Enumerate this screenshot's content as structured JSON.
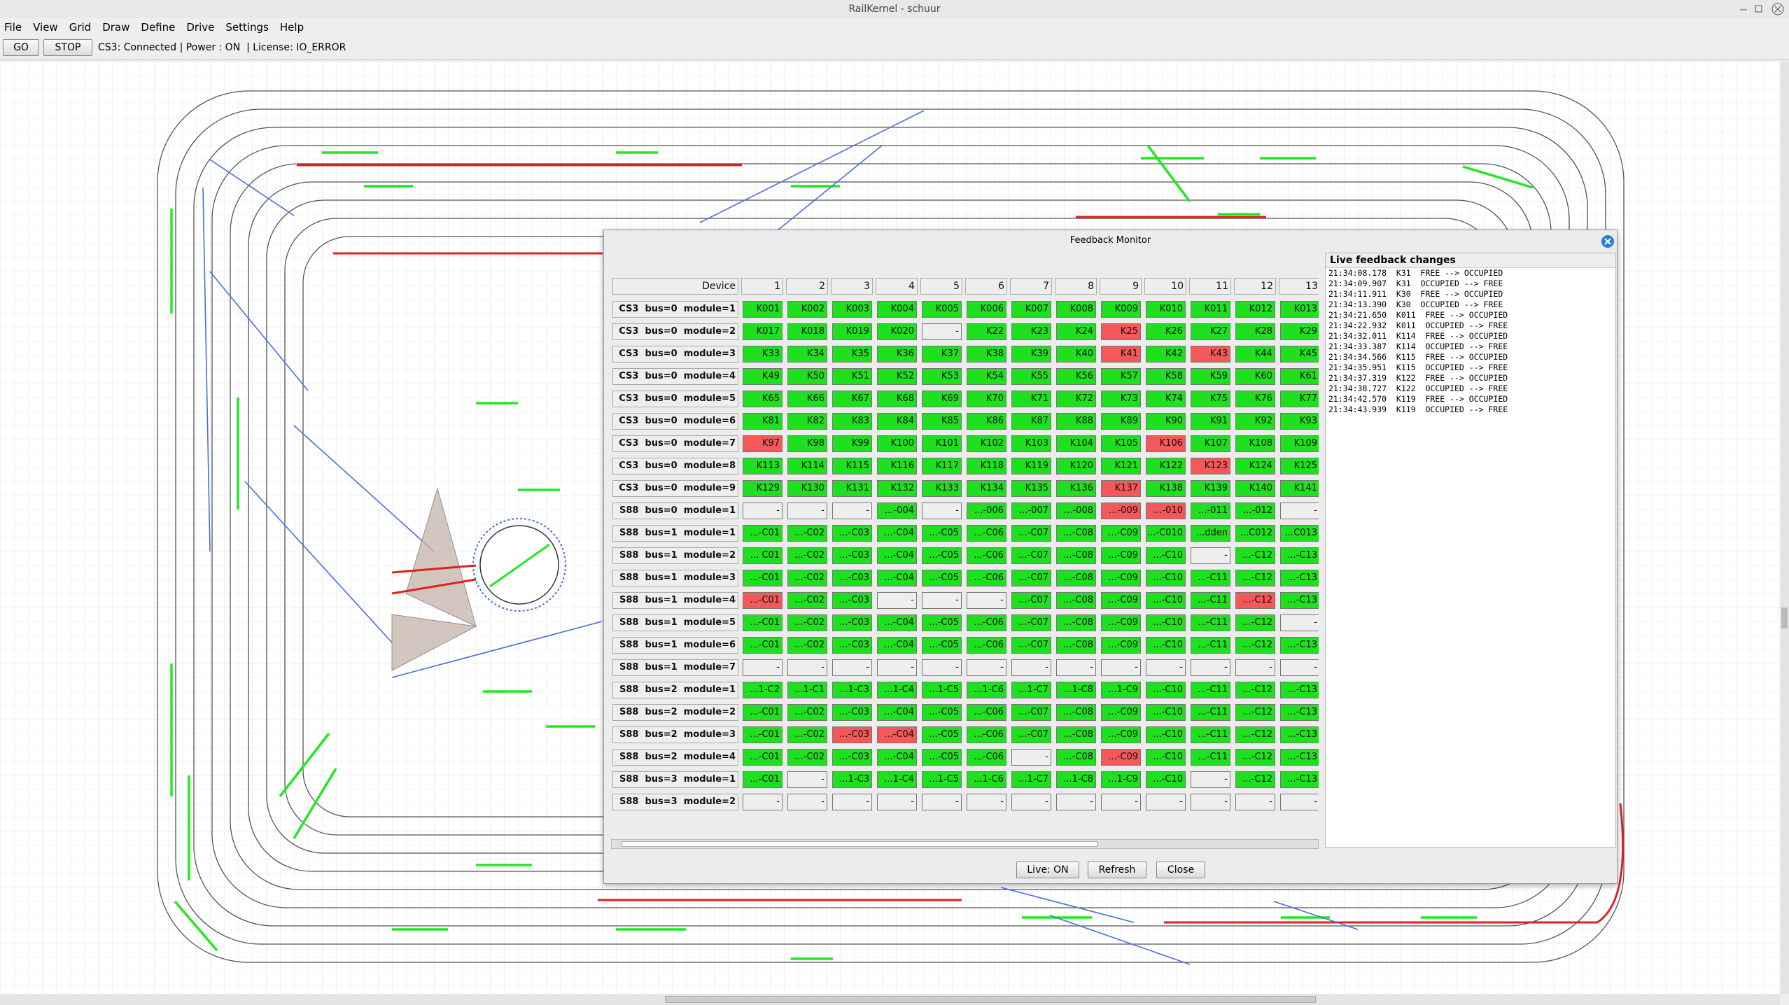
{
  "window": {
    "title": "RailKernel - schuur"
  },
  "menu": [
    "File",
    "View",
    "Grid",
    "Draw",
    "Define",
    "Drive",
    "Settings",
    "Help"
  ],
  "toolbar": {
    "buttons": [
      "GO",
      "STOP"
    ],
    "status": "CS3: Connected | Power : ON  | License: IO_ERROR"
  },
  "dialog": {
    "title": "Feedback Monitor",
    "columns": [
      "Device",
      "1",
      "2",
      "3",
      "4",
      "5",
      "6",
      "7",
      "8",
      "9",
      "10",
      "11",
      "12",
      "13"
    ],
    "rows": [
      {
        "device": "CS3  bus=0  module=1",
        "cells": [
          "K001",
          "K002",
          "K003",
          "K004",
          "K005",
          "K006",
          "K007",
          "K008",
          "K009",
          "K010",
          "K011",
          "K012",
          "K013"
        ],
        "colors": [
          "#1fe01f",
          "#1fe01f",
          "#1fe01f",
          "#1fe01f",
          "#1fe01f",
          "#1fe01f",
          "#1fe01f",
          "#1fe01f",
          "#1fe01f",
          "#1fe01f",
          "#1fe01f",
          "#1fe01f",
          "#1fe01f"
        ]
      },
      {
        "device": "CS3  bus=0  module=2",
        "cells": [
          "K017",
          "K018",
          "K019",
          "K020",
          "-",
          "K22",
          "K23",
          "K24",
          "K25",
          "K26",
          "K27",
          "K28",
          "K29"
        ],
        "colors": [
          "#1fe01f",
          "#1fe01f",
          "#1fe01f",
          "#1fe01f",
          "#eeeeee",
          "#1fe01f",
          "#1fe01f",
          "#1fe01f",
          "#f55858",
          "#1fe01f",
          "#1fe01f",
          "#1fe01f",
          "#1fe01f"
        ]
      },
      {
        "device": "CS3  bus=0  module=3",
        "cells": [
          "K33",
          "K34",
          "K35",
          "K36",
          "K37",
          "K38",
          "K39",
          "K40",
          "K41",
          "K42",
          "K43",
          "K44",
          "K45"
        ],
        "colors": [
          "#1fe01f",
          "#1fe01f",
          "#1fe01f",
          "#1fe01f",
          "#1fe01f",
          "#1fe01f",
          "#1fe01f",
          "#1fe01f",
          "#f55858",
          "#1fe01f",
          "#f55858",
          "#1fe01f",
          "#1fe01f"
        ]
      },
      {
        "device": "CS3  bus=0  module=4",
        "cells": [
          "K49",
          "K50",
          "K51",
          "K52",
          "K53",
          "K54",
          "K55",
          "K56",
          "K57",
          "K58",
          "K59",
          "K60",
          "K61"
        ],
        "colors": [
          "#1fe01f",
          "#1fe01f",
          "#1fe01f",
          "#1fe01f",
          "#1fe01f",
          "#1fe01f",
          "#1fe01f",
          "#1fe01f",
          "#1fe01f",
          "#1fe01f",
          "#1fe01f",
          "#1fe01f",
          "#1fe01f"
        ]
      },
      {
        "device": "CS3  bus=0  module=5",
        "cells": [
          "K65",
          "K66",
          "K67",
          "K68",
          "K69",
          "K70",
          "K71",
          "K72",
          "K73",
          "K74",
          "K75",
          "K76",
          "K77"
        ],
        "colors": [
          "#1fe01f",
          "#1fe01f",
          "#1fe01f",
          "#1fe01f",
          "#1fe01f",
          "#1fe01f",
          "#1fe01f",
          "#1fe01f",
          "#1fe01f",
          "#1fe01f",
          "#1fe01f",
          "#1fe01f",
          "#1fe01f"
        ]
      },
      {
        "device": "CS3  bus=0  module=6",
        "cells": [
          "K81",
          "K82",
          "K83",
          "K84",
          "K85",
          "K86",
          "K87",
          "K88",
          "K89",
          "K90",
          "K91",
          "K92",
          "K93"
        ],
        "colors": [
          "#1fe01f",
          "#1fe01f",
          "#1fe01f",
          "#1fe01f",
          "#1fe01f",
          "#1fe01f",
          "#1fe01f",
          "#1fe01f",
          "#1fe01f",
          "#1fe01f",
          "#1fe01f",
          "#1fe01f",
          "#1fe01f"
        ]
      },
      {
        "device": "CS3  bus=0  module=7",
        "cells": [
          "K97",
          "K98",
          "K99",
          "K100",
          "K101",
          "K102",
          "K103",
          "K104",
          "K105",
          "K106",
          "K107",
          "K108",
          "K109"
        ],
        "colors": [
          "#f55858",
          "#1fe01f",
          "#1fe01f",
          "#1fe01f",
          "#1fe01f",
          "#1fe01f",
          "#1fe01f",
          "#1fe01f",
          "#1fe01f",
          "#f55858",
          "#1fe01f",
          "#1fe01f",
          "#1fe01f"
        ]
      },
      {
        "device": "CS3  bus=0  module=8",
        "cells": [
          "K113",
          "K114",
          "K115",
          "K116",
          "K117",
          "K118",
          "K119",
          "K120",
          "K121",
          "K122",
          "K123",
          "K124",
          "K125"
        ],
        "colors": [
          "#1fe01f",
          "#1fe01f",
          "#1fe01f",
          "#1fe01f",
          "#1fe01f",
          "#1fe01f",
          "#1fe01f",
          "#1fe01f",
          "#1fe01f",
          "#1fe01f",
          "#f55858",
          "#1fe01f",
          "#1fe01f"
        ]
      },
      {
        "device": "CS3  bus=0  module=9",
        "cells": [
          "K129",
          "K130",
          "K131",
          "K132",
          "K133",
          "K134",
          "K135",
          "K136",
          "K137",
          "K138",
          "K139",
          "K140",
          "K141"
        ],
        "colors": [
          "#1fe01f",
          "#1fe01f",
          "#1fe01f",
          "#1fe01f",
          "#1fe01f",
          "#1fe01f",
          "#1fe01f",
          "#1fe01f",
          "#f55858",
          "#1fe01f",
          "#1fe01f",
          "#1fe01f",
          "#1fe01f"
        ]
      },
      {
        "device": "S88  bus=0  module=1",
        "cells": [
          "-",
          "-",
          "-",
          "...-004",
          "-",
          "...-006",
          "...-007",
          "...-008",
          "...-009",
          "...-010",
          "...-011",
          "...-012",
          "-"
        ],
        "colors": [
          "#eeeeee",
          "#eeeeee",
          "#eeeeee",
          "#1fe01f",
          "#eeeeee",
          "#1fe01f",
          "#1fe01f",
          "#1fe01f",
          "#f55858",
          "#f55858",
          "#1fe01f",
          "#1fe01f",
          "#eeeeee"
        ]
      },
      {
        "device": "S88  bus=1  module=1",
        "cells": [
          "...-C01",
          "...-C02",
          "...-C03",
          "...-C04",
          "...-C05",
          "...-C06",
          "...-C07",
          "...-C08",
          "...-C09",
          "...-C010",
          "...dden",
          "...C012",
          "...C013"
        ],
        "colors": [
          "#1fe01f",
          "#1fe01f",
          "#1fe01f",
          "#1fe01f",
          "#1fe01f",
          "#1fe01f",
          "#1fe01f",
          "#1fe01f",
          "#1fe01f",
          "#1fe01f",
          "#1fe01f",
          "#1fe01f",
          "#1fe01f"
        ]
      },
      {
        "device": "S88  bus=1  module=2",
        "cells": [
          "... C01",
          "...-C02",
          "...-C03",
          "...-C04",
          "...-C05",
          "...-C06",
          "...-C07",
          "...-C08",
          "...-C09",
          "...-C10",
          "-",
          "...-C12",
          "...-C13"
        ],
        "colors": [
          "#1fe01f",
          "#1fe01f",
          "#1fe01f",
          "#1fe01f",
          "#1fe01f",
          "#1fe01f",
          "#1fe01f",
          "#1fe01f",
          "#1fe01f",
          "#1fe01f",
          "#eeeeee",
          "#1fe01f",
          "#1fe01f"
        ]
      },
      {
        "device": "S88  bus=1  module=3",
        "cells": [
          "...-C01",
          "...-C02",
          "...-C03",
          "...-C04",
          "...-C05",
          "...-C06",
          "...-C07",
          "...-C08",
          "...-C09",
          "...-C10",
          "...-C11",
          "...-C12",
          "...-C13"
        ],
        "colors": [
          "#1fe01f",
          "#1fe01f",
          "#1fe01f",
          "#1fe01f",
          "#1fe01f",
          "#1fe01f",
          "#1fe01f",
          "#1fe01f",
          "#1fe01f",
          "#1fe01f",
          "#1fe01f",
          "#1fe01f",
          "#1fe01f"
        ]
      },
      {
        "device": "S88  bus=1  module=4",
        "cells": [
          "...-C01",
          "...-C02",
          "...-C03",
          "-",
          "-",
          "-",
          "...-C07",
          "...-C08",
          "...-C09",
          "...-C10",
          "...-C11",
          "...-C12",
          "...-C13"
        ],
        "colors": [
          "#f55858",
          "#1fe01f",
          "#1fe01f",
          "#eeeeee",
          "#eeeeee",
          "#eeeeee",
          "#1fe01f",
          "#1fe01f",
          "#1fe01f",
          "#1fe01f",
          "#1fe01f",
          "#f55858",
          "#1fe01f"
        ]
      },
      {
        "device": "S88  bus=1  module=5",
        "cells": [
          "...-C01",
          "...-C02",
          "...-C03",
          "...-C04",
          "...-C05",
          "...-C06",
          "...-C07",
          "...-C08",
          "...-C09",
          "...-C10",
          "...-C11",
          "...-C12",
          "-"
        ],
        "colors": [
          "#1fe01f",
          "#1fe01f",
          "#1fe01f",
          "#1fe01f",
          "#1fe01f",
          "#1fe01f",
          "#1fe01f",
          "#1fe01f",
          "#1fe01f",
          "#1fe01f",
          "#1fe01f",
          "#1fe01f",
          "#eeeeee"
        ]
      },
      {
        "device": "S88  bus=1  module=6",
        "cells": [
          "...-C01",
          "...-C02",
          "...-C03",
          "...-C04",
          "...-C05",
          "...-C06",
          "...-C07",
          "...-C08",
          "...-C09",
          "...-C10",
          "...-C11",
          "...-C12",
          "...-C13"
        ],
        "colors": [
          "#1fe01f",
          "#1fe01f",
          "#1fe01f",
          "#1fe01f",
          "#1fe01f",
          "#1fe01f",
          "#1fe01f",
          "#1fe01f",
          "#1fe01f",
          "#1fe01f",
          "#1fe01f",
          "#1fe01f",
          "#1fe01f"
        ]
      },
      {
        "device": "S88  bus=1  module=7",
        "cells": [
          "-",
          "-",
          "-",
          "-",
          "-",
          "-",
          "-",
          "-",
          "-",
          "-",
          "-",
          "-",
          "-"
        ],
        "colors": [
          "#eeeeee",
          "#eeeeee",
          "#eeeeee",
          "#eeeeee",
          "#eeeeee",
          "#eeeeee",
          "#eeeeee",
          "#eeeeee",
          "#eeeeee",
          "#eeeeee",
          "#eeeeee",
          "#eeeeee",
          "#eeeeee"
        ]
      },
      {
        "device": "S88  bus=2  module=1",
        "cells": [
          "...1-C2",
          "...1-C1",
          "...1-C3",
          "...1-C4",
          "...1-C5",
          "...1-C6",
          "...1-C7",
          "...1-C8",
          "...1-C9",
          "...-C10",
          "...-C11",
          "...-C12",
          "...-C13"
        ],
        "colors": [
          "#1fe01f",
          "#1fe01f",
          "#1fe01f",
          "#1fe01f",
          "#1fe01f",
          "#1fe01f",
          "#1fe01f",
          "#1fe01f",
          "#1fe01f",
          "#1fe01f",
          "#1fe01f",
          "#1fe01f",
          "#1fe01f"
        ]
      },
      {
        "device": "S88  bus=2  module=2",
        "cells": [
          "...-C01",
          "...-C02",
          "...-C03",
          "...-C04",
          "...-C05",
          "...-C06",
          "...-C07",
          "...-C08",
          "...-C09",
          "...-C10",
          "...-C11",
          "...-C12",
          "...-C13"
        ],
        "colors": [
          "#1fe01f",
          "#1fe01f",
          "#1fe01f",
          "#1fe01f",
          "#1fe01f",
          "#1fe01f",
          "#1fe01f",
          "#1fe01f",
          "#1fe01f",
          "#1fe01f",
          "#1fe01f",
          "#1fe01f",
          "#1fe01f"
        ]
      },
      {
        "device": "S88  bus=2  module=3",
        "cells": [
          "...-C01",
          "...-C02",
          "...-C03",
          "...-C04",
          "...-C05",
          "...-C06",
          "...-C07",
          "...-C08",
          "...-C09",
          "...-C10",
          "...-C11",
          "...-C12",
          "...-C13"
        ],
        "colors": [
          "#1fe01f",
          "#1fe01f",
          "#f55858",
          "#f55858",
          "#1fe01f",
          "#1fe01f",
          "#1fe01f",
          "#1fe01f",
          "#1fe01f",
          "#1fe01f",
          "#1fe01f",
          "#1fe01f",
          "#1fe01f"
        ]
      },
      {
        "device": "S88  bus=2  module=4",
        "cells": [
          "...-C01",
          "...-C02",
          "...-C03",
          "...-C04",
          "...-C05",
          "...-C06",
          "-",
          "...-C08",
          "...-C09",
          "...-C10",
          "...-C11",
          "...-C12",
          "...-C13"
        ],
        "colors": [
          "#1fe01f",
          "#1fe01f",
          "#1fe01f",
          "#1fe01f",
          "#1fe01f",
          "#1fe01f",
          "#eeeeee",
          "#1fe01f",
          "#f55858",
          "#1fe01f",
          "#1fe01f",
          "#1fe01f",
          "#1fe01f"
        ]
      },
      {
        "device": "S88  bus=3  module=1",
        "cells": [
          "...-C01",
          "-",
          "...1-C3",
          "...1-C4",
          "...1-C5",
          "...1-C6",
          "...1-C7",
          "...1-C8",
          "...1-C9",
          "...-C10",
          "-",
          "...-C12",
          "...-C13"
        ],
        "colors": [
          "#1fe01f",
          "#eeeeee",
          "#1fe01f",
          "#1fe01f",
          "#1fe01f",
          "#1fe01f",
          "#1fe01f",
          "#1fe01f",
          "#1fe01f",
          "#1fe01f",
          "#eeeeee",
          "#1fe01f",
          "#1fe01f"
        ]
      },
      {
        "device": "S88  bus=3  module=2",
        "cells": [
          "-",
          "-",
          "-",
          "-",
          "-",
          "-",
          "-",
          "-",
          "-",
          "-",
          "-",
          "-",
          "-"
        ],
        "colors": [
          "#eeeeee",
          "#eeeeee",
          "#eeeeee",
          "#eeeeee",
          "#eeeeee",
          "#eeeeee",
          "#eeeeee",
          "#eeeeee",
          "#eeeeee",
          "#eeeeee",
          "#eeeeee",
          "#eeeeee",
          "#eeeeee"
        ]
      }
    ],
    "log_title": "Live feedback changes",
    "log": [
      "21:34:08.178  K31  FREE --> OCCUPIED",
      "21:34:09.907  K31  OCCUPIED --> FREE",
      "21:34:11.911  K30  FREE --> OCCUPIED",
      "21:34:13.390  K30  OCCUPIED --> FREE",
      "21:34:21.650  K011  FREE --> OCCUPIED",
      "21:34:22.932  K011  OCCUPIED --> FREE",
      "21:34:32.011  K114  FREE --> OCCUPIED",
      "21:34:33.387  K114  OCCUPIED --> FREE",
      "21:34:34.566  K115  FREE --> OCCUPIED",
      "21:34:35.951  K115  OCCUPIED --> FREE",
      "21:34:37.319  K122  FREE --> OCCUPIED",
      "21:34:38.727  K122  OCCUPIED --> FREE",
      "21:34:42.570  K119  FREE --> OCCUPIED",
      "21:34:43.939  K119  OCCUPIED --> FREE"
    ],
    "buttons": [
      "Live: ON",
      "Refresh",
      "Close"
    ]
  }
}
